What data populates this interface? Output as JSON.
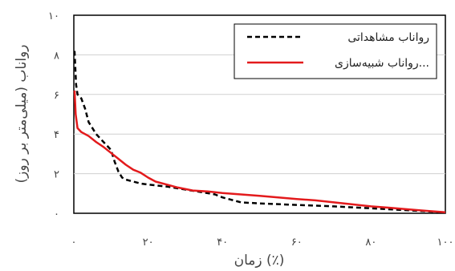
{
  "chart_data": {
    "type": "line",
    "title": "",
    "xlabel": "زمان (٪)",
    "ylabel": "رواناب (میلی‌متر بر روز)",
    "xlim": [
      0,
      100
    ],
    "ylim": [
      0,
      10
    ],
    "x_ticks": [
      "۰",
      "۲۰",
      "۴۰",
      "۶۰",
      "۸۰",
      "۱۰۰"
    ],
    "y_ticks": [
      "۰",
      "۲",
      "۴",
      "۶",
      "۸",
      "۱۰"
    ],
    "grid": "horizontal",
    "legend_position": "top-right",
    "series": [
      {
        "name": "رواناب مشاهداتی",
        "color": "#000000",
        "style": "dashed",
        "points": [
          [
            0.2,
            8.2
          ],
          [
            0.6,
            6.5
          ],
          [
            1,
            6.0
          ],
          [
            2,
            5.8
          ],
          [
            3,
            5.3
          ],
          [
            4,
            4.6
          ],
          [
            5,
            4.3
          ],
          [
            6,
            4.0
          ],
          [
            7,
            3.8
          ],
          [
            8,
            3.6
          ],
          [
            9,
            3.4
          ],
          [
            10,
            3.2
          ],
          [
            11,
            2.6
          ],
          [
            12,
            2.1
          ],
          [
            13,
            1.8
          ],
          [
            14,
            1.7
          ],
          [
            16,
            1.6
          ],
          [
            18,
            1.5
          ],
          [
            20,
            1.45
          ],
          [
            25,
            1.35
          ],
          [
            30,
            1.2
          ],
          [
            35,
            1.05
          ],
          [
            38,
            0.95
          ],
          [
            40,
            0.8
          ],
          [
            42,
            0.7
          ],
          [
            45,
            0.55
          ],
          [
            50,
            0.5
          ],
          [
            60,
            0.42
          ],
          [
            70,
            0.35
          ],
          [
            80,
            0.25
          ],
          [
            90,
            0.15
          ],
          [
            95,
            0.1
          ],
          [
            100,
            0.03
          ]
        ]
      },
      {
        "name": "رواناب شبیه‌سازی...",
        "color": "#e31a1c",
        "style": "solid",
        "points": [
          [
            0.2,
            6.2
          ],
          [
            0.5,
            5.0
          ],
          [
            1,
            4.3
          ],
          [
            2,
            4.1
          ],
          [
            4,
            3.9
          ],
          [
            6,
            3.6
          ],
          [
            8,
            3.35
          ],
          [
            10,
            3.05
          ],
          [
            12,
            2.75
          ],
          [
            14,
            2.45
          ],
          [
            16,
            2.2
          ],
          [
            18,
            2.05
          ],
          [
            20,
            1.8
          ],
          [
            22,
            1.6
          ],
          [
            25,
            1.45
          ],
          [
            28,
            1.3
          ],
          [
            32,
            1.15
          ],
          [
            36,
            1.1
          ],
          [
            40,
            1.02
          ],
          [
            45,
            0.95
          ],
          [
            50,
            0.88
          ],
          [
            55,
            0.8
          ],
          [
            60,
            0.72
          ],
          [
            65,
            0.65
          ],
          [
            70,
            0.55
          ],
          [
            75,
            0.45
          ],
          [
            80,
            0.35
          ],
          [
            85,
            0.28
          ],
          [
            90,
            0.2
          ],
          [
            95,
            0.12
          ],
          [
            100,
            0.05
          ]
        ]
      }
    ]
  }
}
